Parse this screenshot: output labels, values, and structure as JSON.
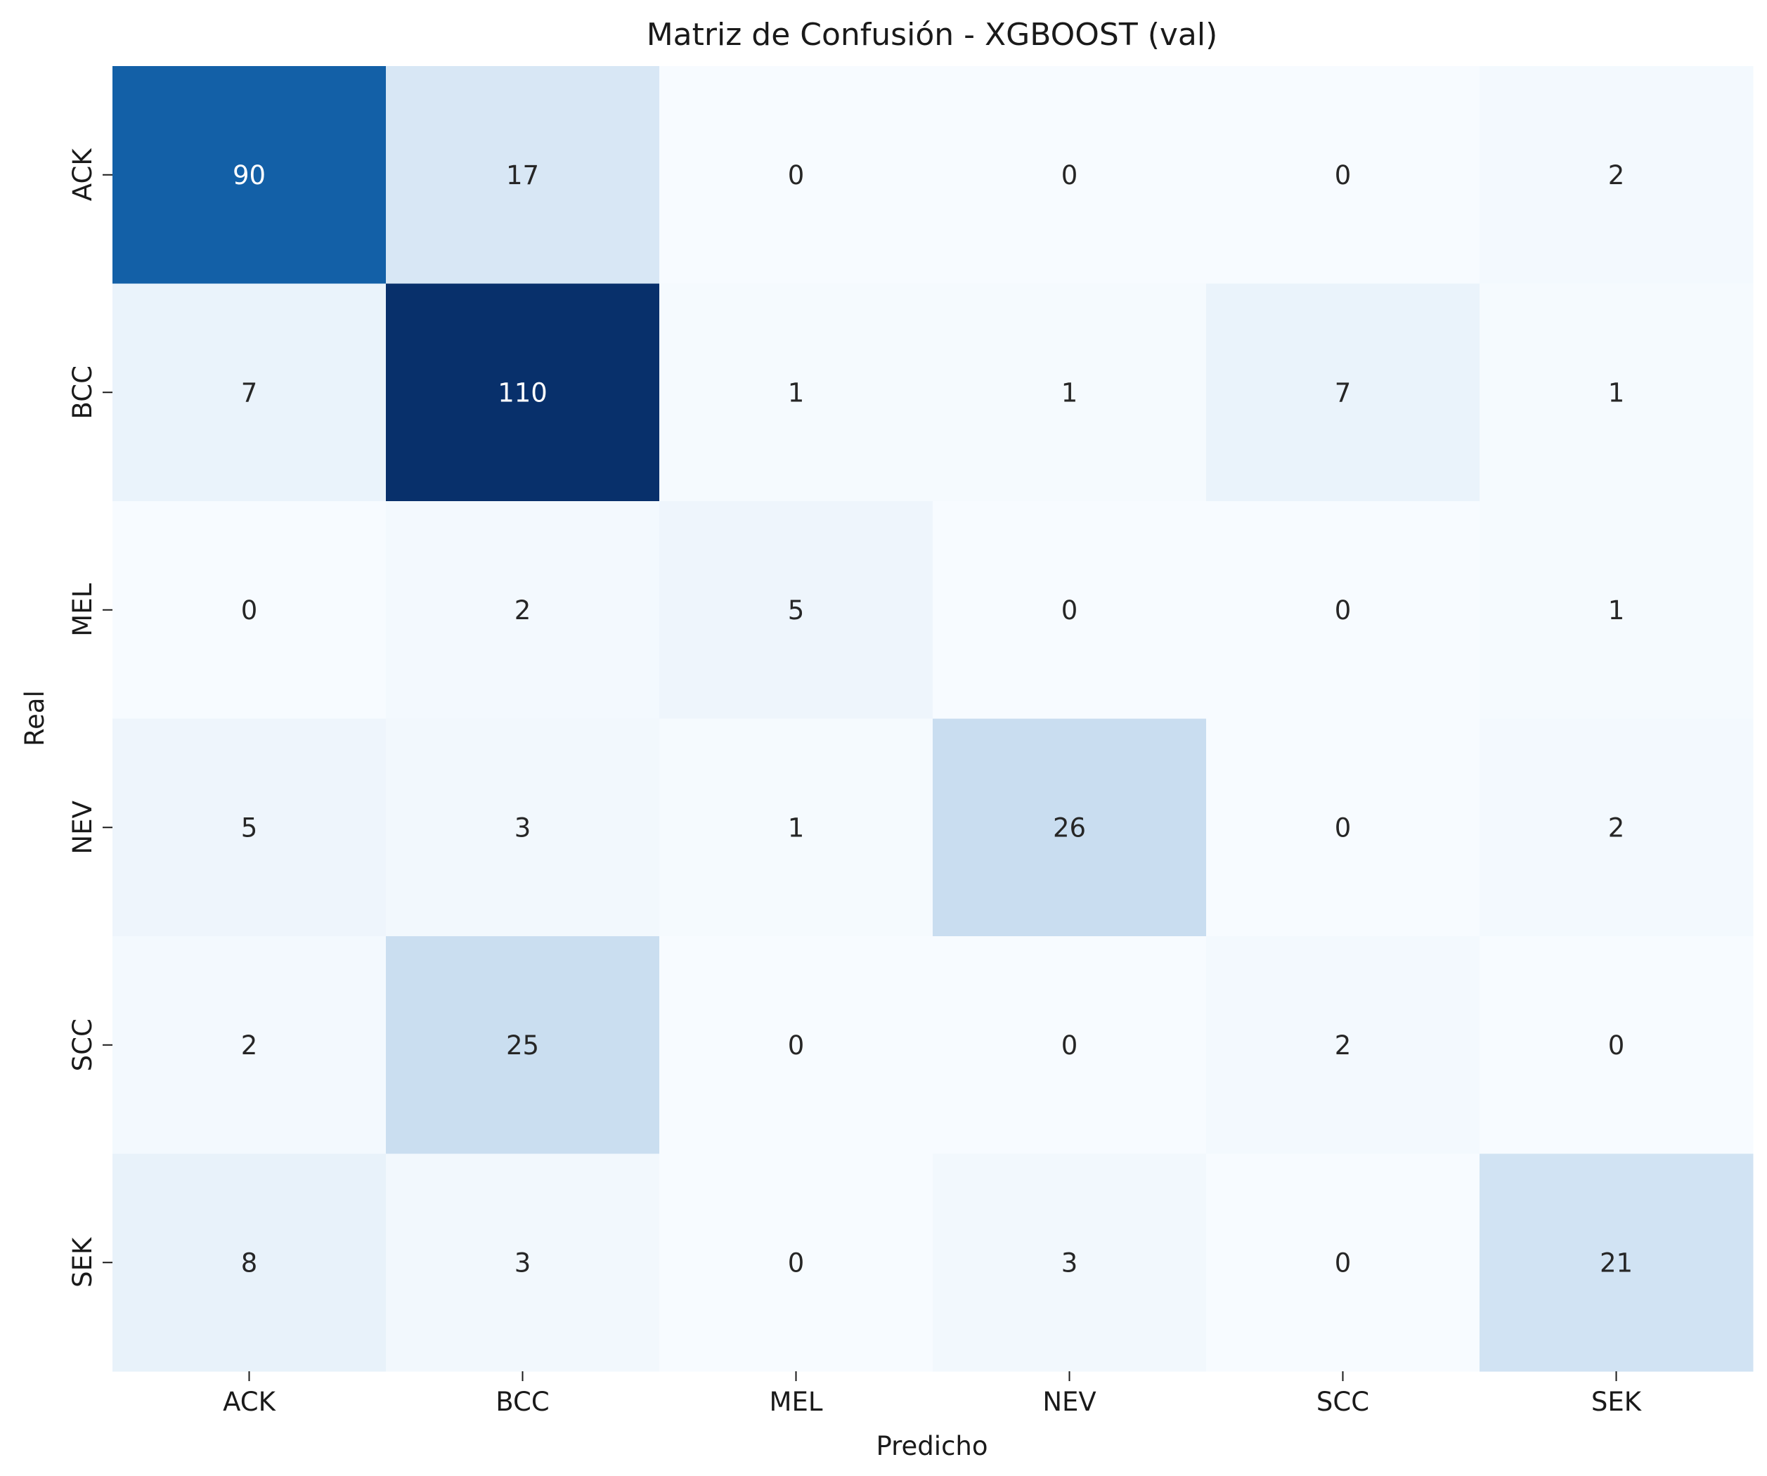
{
  "chart_data": {
    "type": "heatmap",
    "title": "Matriz de Confusión - XGBOOST (val)",
    "xlabel": "Predicho",
    "ylabel": "Real",
    "x_categories": [
      "ACK",
      "BCC",
      "MEL",
      "NEV",
      "SCC",
      "SEK"
    ],
    "y_categories": [
      "ACK",
      "BCC",
      "MEL",
      "NEV",
      "SCC",
      "SEK"
    ],
    "values": [
      [
        90,
        17,
        0,
        0,
        0,
        2
      ],
      [
        7,
        110,
        1,
        1,
        7,
        1
      ],
      [
        0,
        2,
        5,
        0,
        0,
        1
      ],
      [
        5,
        3,
        1,
        26,
        0,
        2
      ],
      [
        2,
        25,
        0,
        0,
        2,
        0
      ],
      [
        8,
        3,
        0,
        3,
        0,
        21
      ]
    ],
    "colormap": "Blues",
    "vmin": 0,
    "vmax": 110,
    "colorbar": false
  }
}
